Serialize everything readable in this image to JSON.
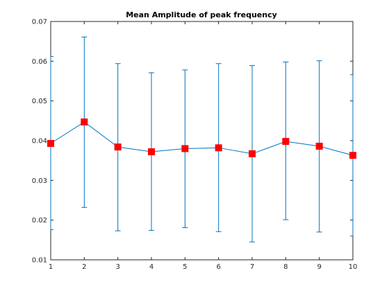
{
  "chart_data": {
    "type": "line",
    "title": "Mean Amplitude of peak frequency",
    "xlabel": "",
    "ylabel": "",
    "xlim": [
      1,
      10
    ],
    "ylim": [
      0.01,
      0.07
    ],
    "x": [
      1,
      2,
      3,
      4,
      5,
      6,
      7,
      8,
      9,
      10
    ],
    "x_ticks": [
      "1",
      "2",
      "3",
      "4",
      "5",
      "6",
      "7",
      "8",
      "9",
      "10"
    ],
    "y_ticks": [
      "0.01",
      "0.02",
      "0.03",
      "0.04",
      "0.05",
      "0.06",
      "0.07"
    ],
    "grid": false,
    "series": [
      {
        "values": [
          0.0393,
          0.0447,
          0.0384,
          0.0372,
          0.038,
          0.0382,
          0.0367,
          0.0398,
          0.0386,
          0.0363
        ],
        "error_lower": [
          0.0176,
          0.0232,
          0.0173,
          0.0174,
          0.0181,
          0.0171,
          0.0145,
          0.0201,
          0.017,
          0.016
        ],
        "error_upper": [
          0.0612,
          0.0661,
          0.0594,
          0.0571,
          0.0578,
          0.0594,
          0.0589,
          0.0598,
          0.0601,
          0.0566
        ],
        "line_color": "#0072BD",
        "marker_color": "#FF0000"
      }
    ]
  }
}
